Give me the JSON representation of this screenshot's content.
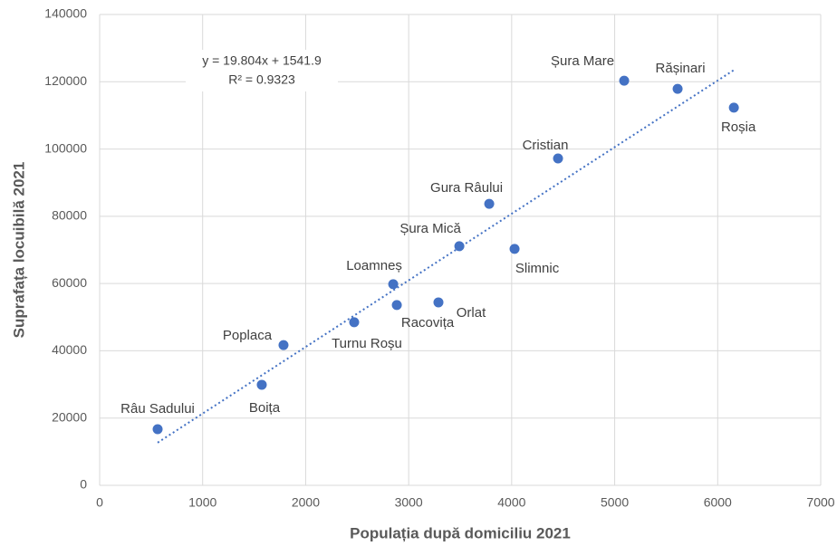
{
  "chart_data": {
    "type": "scatter",
    "xlabel": "Populația după domiciliu 2021",
    "ylabel": "Suprafața locuibilă 2021",
    "point_labels": [
      "Râu Sadului",
      "Boița",
      "Poplaca",
      "Turnu Roșu",
      "Loamneș",
      "Racovița",
      "Orlat",
      "Șura Mică",
      "Slimnic",
      "Gura Râului",
      "Cristian",
      "Șura Mare",
      "Rășinari",
      "Roșia"
    ],
    "x": [
      563,
      1574,
      1785,
      2471,
      2850,
      2885,
      3289,
      3492,
      4028,
      3782,
      4450,
      5092,
      5611,
      6157
    ],
    "values": [
      16700,
      29900,
      41700,
      48500,
      59800,
      53600,
      54400,
      71100,
      70300,
      83700,
      97200,
      120300,
      117900,
      112300
    ],
    "color": "#4472c4",
    "xlim": [
      0,
      7000
    ],
    "xticks": [
      0,
      1000,
      2000,
      3000,
      4000,
      5000,
      6000,
      7000
    ],
    "ylim": [
      0,
      140000
    ],
    "yticks": [
      0,
      20000,
      40000,
      60000,
      80000,
      100000,
      120000,
      140000
    ],
    "grid": true,
    "trendline": {
      "equation": "y = 19.804x + 1541.9",
      "r_squared": "R² = 0.9323",
      "slope": 19.804,
      "intercept": 1541.9,
      "color": "#4472c4"
    }
  }
}
